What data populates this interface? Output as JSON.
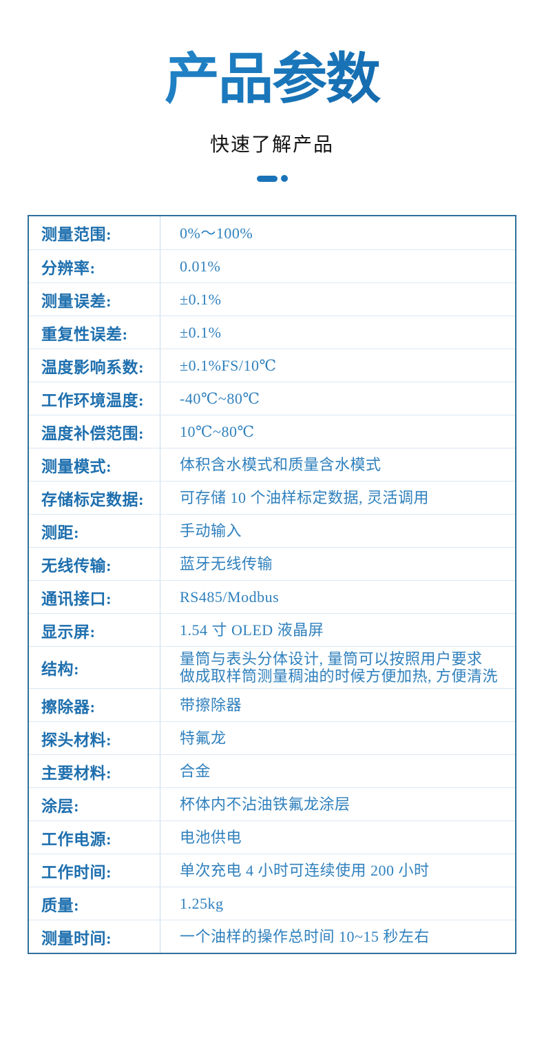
{
  "header": {
    "title": "产品参数",
    "subtitle": "快速了解产品"
  },
  "table": {
    "rows": [
      {
        "label": "测量范围:",
        "value": "0%～100%"
      },
      {
        "label": "分辨率:",
        "value": "0.01%"
      },
      {
        "label": "测量误差:",
        "value": "±0.1%"
      },
      {
        "label": "重复性误差:",
        "value": "±0.1%"
      },
      {
        "label": "温度影响系数:",
        "value": "±0.1%FS/10℃"
      },
      {
        "label": "工作环境温度:",
        "value": "-40℃~80℃"
      },
      {
        "label": "温度补偿范围:",
        "value": "10℃~80℃"
      },
      {
        "label": "测量模式:",
        "value": "体积含水模式和质量含水模式"
      },
      {
        "label": "存储标定数据:",
        "value": "可存储 10 个油样标定数据, 灵活调用"
      },
      {
        "label": "测距:",
        "value": "手动输入"
      },
      {
        "label": "无线传输:",
        "value": "蓝牙无线传输"
      },
      {
        "label": "通讯接口:",
        "value": "RS485/Modbus"
      },
      {
        "label": "显示屏:",
        "value": "1.54 寸 OLED 液晶屏"
      },
      {
        "label": "结构:",
        "value": "量筒与表头分体设计, 量筒可以按照用户要求\n做成取样筒测量稠油的时候方便加热, 方便清洗"
      },
      {
        "label": "擦除器:",
        "value": "带擦除器"
      },
      {
        "label": "探头材料:",
        "value": "特氟龙"
      },
      {
        "label": "主要材料:",
        "value": "合金"
      },
      {
        "label": "涂层:",
        "value": "杯体内不沾油铁氟龙涂层"
      },
      {
        "label": "工作电源:",
        "value": "电池供电"
      },
      {
        "label": "工作时间:",
        "value": "单次充电 4 小时可连续使用 200 小时"
      },
      {
        "label": "质量:",
        "value": "1.25kg"
      },
      {
        "label": "测量时间:",
        "value": "一个油样的操作总时间 10~15 秒左右"
      }
    ]
  },
  "colors": {
    "accent": "#1a73b8",
    "accent_title_light": "#2f97d9",
    "accent_title_dark": "#0d5b9d",
    "label_text": "#1e6fae",
    "value_text": "#2f80bd",
    "table_border": "#2e6f9d",
    "row_divider": "#dce8f2",
    "column_divider": "#c6dcec",
    "subtitle_text": "#141414"
  }
}
